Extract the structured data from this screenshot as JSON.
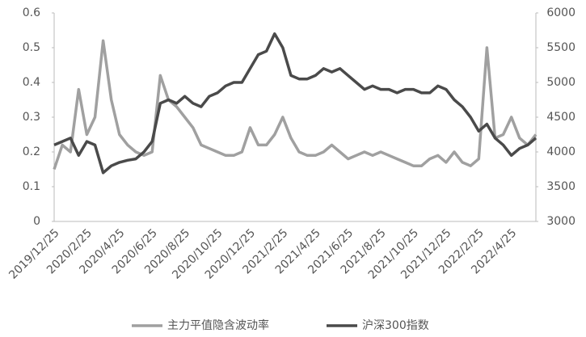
{
  "chart_data": {
    "type": "line",
    "categories": [
      "2019/12/25",
      null,
      null,
      null,
      "2020/2/25",
      null,
      null,
      null,
      "2020/4/25",
      null,
      null,
      null,
      "2020/6/25",
      null,
      null,
      null,
      "2020/8/25",
      null,
      null,
      null,
      "2020/10/25",
      null,
      null,
      null,
      "2020/12/25",
      null,
      null,
      null,
      "2021/2/25",
      null,
      null,
      null,
      "2021/4/25",
      null,
      null,
      null,
      "2021/6/25",
      null,
      null,
      null,
      "2021/8/25",
      null,
      null,
      null,
      "2021/10/25",
      null,
      null,
      null,
      "2021/12/25",
      null,
      null,
      null,
      "2022/2/25",
      null,
      null,
      null,
      "2022/4/25",
      null,
      null,
      null
    ],
    "series": [
      {
        "name": "主力平值隐含波动率",
        "color": "#a0a0a0",
        "values": [
          0.15,
          0.22,
          0.2,
          0.38,
          0.25,
          0.3,
          0.52,
          0.35,
          0.25,
          0.22,
          0.2,
          0.19,
          0.2,
          0.42,
          0.35,
          0.33,
          0.3,
          0.27,
          0.22,
          0.21,
          0.2,
          0.19,
          0.19,
          0.2,
          0.27,
          0.22,
          0.22,
          0.25,
          0.3,
          0.24,
          0.2,
          0.19,
          0.19,
          0.2,
          0.22,
          0.2,
          0.18,
          0.19,
          0.2,
          0.19,
          0.2,
          0.19,
          0.18,
          0.17,
          0.16,
          0.16,
          0.18,
          0.19,
          0.17,
          0.2,
          0.17,
          0.16,
          0.18,
          0.5,
          0.24,
          0.25,
          0.3,
          0.24,
          0.22,
          0.25
        ]
      },
      {
        "name": "沪深300指数",
        "color": "#4a4a4a",
        "axis": "y2",
        "values": [
          4100,
          4150,
          4200,
          3950,
          4150,
          4100,
          3700,
          3800,
          3850,
          3880,
          3900,
          4000,
          4150,
          4700,
          4750,
          4700,
          4800,
          4700,
          4650,
          4800,
          4850,
          4950,
          5000,
          5000,
          5200,
          5400,
          5450,
          5700,
          5500,
          5100,
          5050,
          5050,
          5100,
          5200,
          5150,
          5200,
          5100,
          5000,
          4900,
          4950,
          4900,
          4900,
          4850,
          4900,
          4900,
          4850,
          4850,
          4950,
          4900,
          4750,
          4650,
          4500,
          4300,
          4400,
          4200,
          4100,
          3950,
          4050,
          4100,
          4200
        ]
      }
    ],
    "ylim": [
      0,
      0.6
    ],
    "yticks": [
      0,
      0.1,
      0.2,
      0.3,
      0.4,
      0.5,
      0.6
    ],
    "y2lim": [
      3000,
      6000
    ],
    "y2ticks": [
      3000,
      3500,
      4000,
      4500,
      5000,
      5500,
      6000
    ],
    "grid": false,
    "legend": "bottom"
  }
}
